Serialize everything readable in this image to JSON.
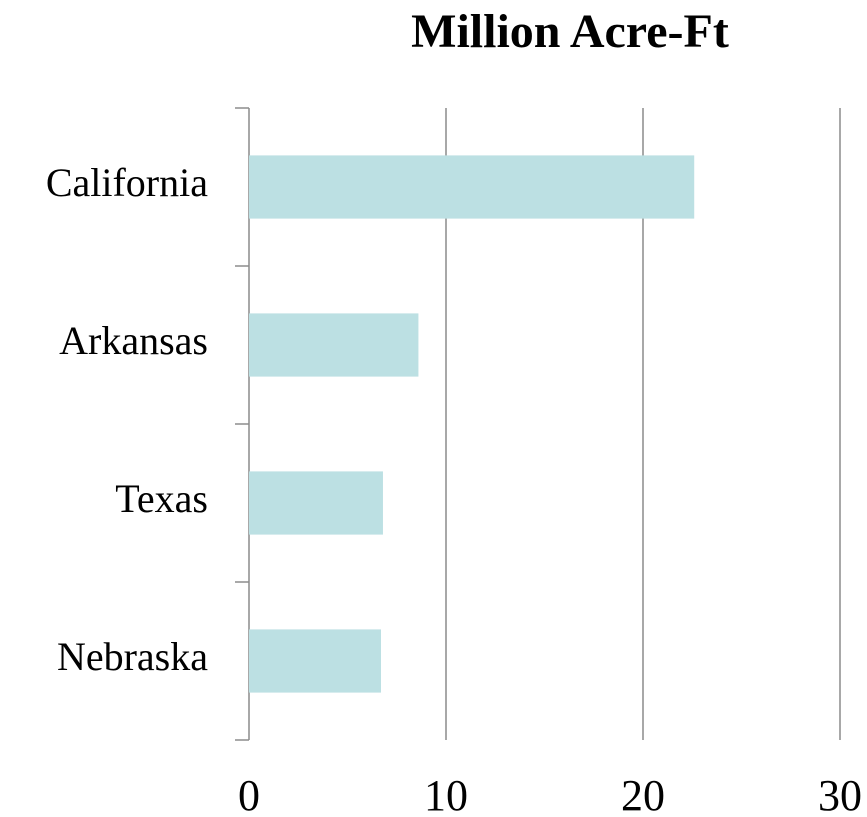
{
  "chart_data": {
    "type": "bar",
    "title": "Million Acre-Ft",
    "categories": [
      "California",
      "Arkansas",
      "Texas",
      "Nebraska"
    ],
    "values": [
      22.6,
      8.6,
      6.8,
      6.7
    ],
    "color": "#bce0e3",
    "xlim": [
      0,
      30
    ],
    "xticks": [
      0,
      10,
      20,
      30
    ],
    "grid": true
  }
}
